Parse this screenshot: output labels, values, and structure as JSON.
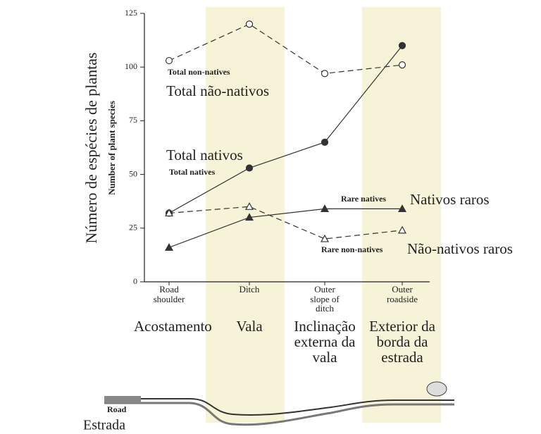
{
  "chart_data": {
    "type": "line",
    "y_label": "Número de espécies de plantas",
    "y_label_original": "Number of plant species",
    "categories": [
      "Road shoulder",
      "Ditch",
      "Outer slope of ditch",
      "Outer roadside"
    ],
    "translated_categories": [
      "Acostamento",
      "Vala",
      "Inclinação externa da vala",
      "Exterior da borda da estrada"
    ],
    "ylim": [
      0,
      125
    ],
    "yticks": [
      0,
      25,
      50,
      75,
      100,
      125
    ],
    "series": [
      {
        "name": "Total non-natives",
        "translated_name": "Total não-nativos",
        "color": "#333333",
        "dashed": true,
        "marker": "open-circle",
        "values": [
          103,
          120,
          97,
          101
        ]
      },
      {
        "name": "Total natives",
        "translated_name": "Total nativos",
        "color": "#333333",
        "dashed": false,
        "marker": "filled-circle",
        "values": [
          32,
          53,
          65,
          110
        ]
      },
      {
        "name": "Rare natives",
        "translated_name": "Nativos raros",
        "color": "#333333",
        "dashed": false,
        "marker": "filled-triangle",
        "values": [
          16,
          30,
          34,
          34
        ]
      },
      {
        "name": "Rare non-natives",
        "translated_name": "Não-nativos raros",
        "color": "#333333",
        "dashed": true,
        "marker": "open-triangle",
        "values": [
          32,
          35,
          20,
          24
        ]
      }
    ]
  },
  "diagram": {
    "road_label": "Road",
    "road_label_translated": "Estrada"
  }
}
